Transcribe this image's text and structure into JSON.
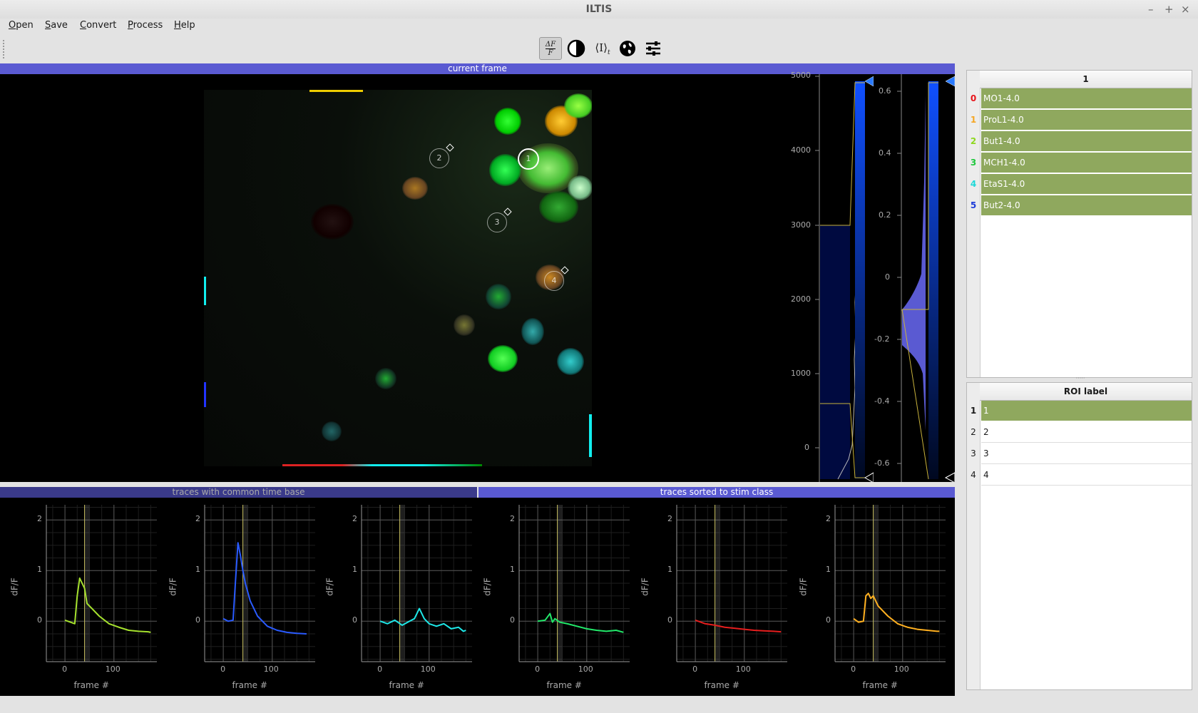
{
  "window": {
    "title": "ILTIS"
  },
  "menu": [
    "Open",
    "Save",
    "Convert",
    "Process",
    "Help"
  ],
  "toolbar": {
    "icons": [
      "dff-icon",
      "contrast-icon",
      "mean-intensity-icon",
      "globe-icon",
      "sliders-icon"
    ],
    "dff_num": "ΔF",
    "dff_den": "F",
    "mean_label": "⟨I⟩",
    "mean_sub": "t"
  },
  "main_view": {
    "header": "current frame",
    "rois": [
      "2",
      "1",
      "3",
      "4"
    ],
    "hist1": {
      "ticks": [
        "5000",
        "4000",
        "3000",
        "2000",
        "1000",
        "0"
      ]
    },
    "hist2": {
      "ticks": [
        "0.6",
        "0.4",
        "0.2",
        "0",
        "-0.2",
        "-0.4",
        "-0.6"
      ]
    }
  },
  "bottom": {
    "tab1": "traces with common time base",
    "tab2": "traces sorted to stim class",
    "ylabel": "dF/F",
    "xlabel": "frame #",
    "yticks": [
      "2",
      "1",
      "0"
    ],
    "xticks": [
      "0",
      "100"
    ]
  },
  "chart_data": [
    {
      "type": "line",
      "ylabel": "dF/F",
      "xlabel": "frame #",
      "ylim": [
        -0.8,
        2.3
      ],
      "xlim": [
        -38,
        192
      ],
      "stim": [
        40,
        50
      ],
      "color": "#a6e22e",
      "x": [
        0,
        20,
        25,
        30,
        35,
        40,
        45,
        55,
        70,
        90,
        110,
        130,
        150,
        170,
        175
      ],
      "values": [
        0.02,
        -0.05,
        0.5,
        0.85,
        0.75,
        0.65,
        0.35,
        0.25,
        0.1,
        -0.05,
        -0.12,
        -0.18,
        -0.2,
        -0.21,
        -0.22
      ]
    },
    {
      "type": "line",
      "ylabel": "dF/F",
      "xlabel": "frame #",
      "ylim": [
        -0.8,
        2.3
      ],
      "xlim": [
        -38,
        192
      ],
      "stim": [
        40,
        50
      ],
      "color": "#2a5bff",
      "x": [
        0,
        10,
        20,
        25,
        30,
        35,
        40,
        45,
        55,
        70,
        90,
        110,
        130,
        150,
        170
      ],
      "values": [
        0.05,
        0.0,
        0.02,
        0.8,
        1.55,
        1.3,
        1.0,
        0.75,
        0.4,
        0.1,
        -0.1,
        -0.18,
        -0.22,
        -0.24,
        -0.25
      ]
    },
    {
      "type": "line",
      "ylabel": "dF/F",
      "xlabel": "frame #",
      "ylim": [
        -0.8,
        2.3
      ],
      "xlim": [
        -38,
        192
      ],
      "stim": [
        40,
        50
      ],
      "color": "#1ee8e8",
      "x": [
        0,
        15,
        30,
        45,
        60,
        70,
        80,
        90,
        100,
        115,
        130,
        145,
        160,
        170,
        175
      ],
      "values": [
        0.0,
        -0.05,
        0.02,
        -0.08,
        0.0,
        0.05,
        0.25,
        0.05,
        -0.05,
        -0.1,
        -0.05,
        -0.15,
        -0.12,
        -0.2,
        -0.18
      ]
    },
    {
      "type": "line",
      "ylabel": "dF/F",
      "xlabel": "frame #",
      "ylim": [
        -0.8,
        2.3
      ],
      "xlim": [
        -38,
        192
      ],
      "stim": [
        40,
        50
      ],
      "color": "#22e86a",
      "x": [
        0,
        15,
        25,
        30,
        35,
        45,
        60,
        80,
        100,
        120,
        140,
        160,
        175
      ],
      "values": [
        0.0,
        0.02,
        0.15,
        -0.02,
        0.05,
        -0.02,
        -0.05,
        -0.1,
        -0.15,
        -0.18,
        -0.2,
        -0.18,
        -0.22
      ]
    },
    {
      "type": "line",
      "ylabel": "dF/F",
      "xlabel": "frame #",
      "ylim": [
        -0.8,
        2.3
      ],
      "xlim": [
        -38,
        192
      ],
      "stim": [
        40,
        50
      ],
      "color": "#e61e1e",
      "x": [
        0,
        20,
        40,
        60,
        80,
        100,
        120,
        140,
        160,
        175
      ],
      "values": [
        0.02,
        -0.05,
        -0.08,
        -0.12,
        -0.14,
        -0.16,
        -0.18,
        -0.19,
        -0.2,
        -0.21
      ]
    },
    {
      "type": "line",
      "ylabel": "dF/F",
      "xlabel": "frame #",
      "ylim": [
        -0.8,
        2.3
      ],
      "xlim": [
        -38,
        192
      ],
      "stim": [
        40,
        50
      ],
      "color": "#ffb020",
      "x": [
        0,
        10,
        20,
        25,
        30,
        35,
        40,
        50,
        70,
        90,
        110,
        130,
        150,
        170,
        175
      ],
      "values": [
        0.05,
        -0.02,
        0.0,
        0.5,
        0.55,
        0.45,
        0.5,
        0.3,
        0.1,
        -0.05,
        -0.12,
        -0.16,
        -0.18,
        -0.2,
        -0.2
      ]
    }
  ],
  "datasets": {
    "column": "1",
    "rows": [
      {
        "num": "0",
        "label": "MO1-4.0",
        "color": "#e8141a"
      },
      {
        "num": "1",
        "label": "ProL1-4.0",
        "color": "#f5a623"
      },
      {
        "num": "2",
        "label": "But1-4.0",
        "color": "#8ed81e"
      },
      {
        "num": "3",
        "label": "MCH1-4.0",
        "color": "#1ec83c"
      },
      {
        "num": "4",
        "label": "EtaS1-4.0",
        "color": "#1ed8d8"
      },
      {
        "num": "5",
        "label": "But2-4.0",
        "color": "#1e3cd8"
      }
    ]
  },
  "roi_table": {
    "column": "ROI label",
    "rows": [
      {
        "num": "1",
        "label": "1"
      },
      {
        "num": "2",
        "label": "2"
      },
      {
        "num": "3",
        "label": "3"
      },
      {
        "num": "4",
        "label": "4"
      }
    ]
  }
}
